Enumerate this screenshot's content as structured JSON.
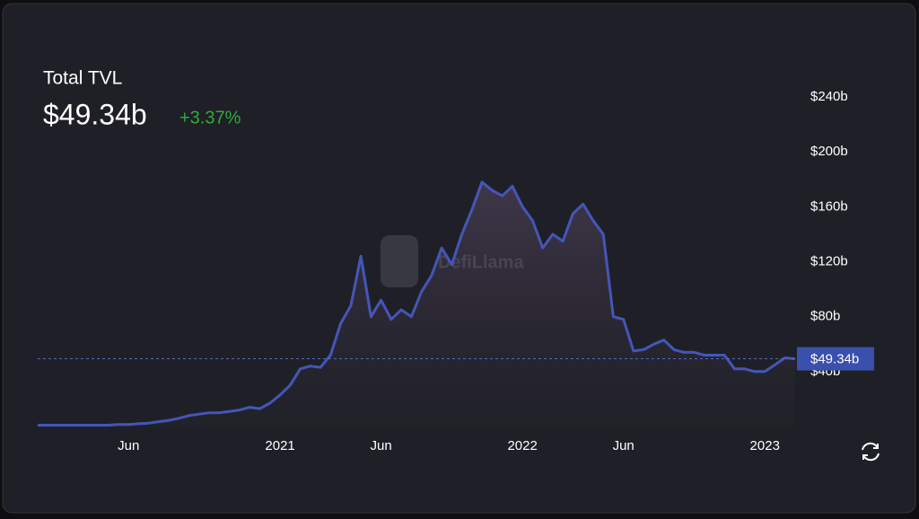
{
  "chart_data": {
    "type": "area",
    "title": "Total TVL",
    "change": "+3.37%",
    "watermark": "DefiLlama",
    "current": {
      "value": 49.34,
      "label": "$49.34b"
    },
    "color": "#4456b8",
    "categories": [
      null,
      null,
      null,
      null,
      null,
      null,
      null,
      null,
      null,
      "Jun",
      null,
      null,
      null,
      null,
      null,
      null,
      null,
      null,
      null,
      null,
      null,
      null,
      null,
      null,
      "2021",
      null,
      null,
      null,
      null,
      null,
      null,
      null,
      null,
      null,
      "Jun",
      null,
      null,
      null,
      null,
      null,
      null,
      null,
      null,
      null,
      null,
      null,
      null,
      null,
      "2022",
      null,
      null,
      null,
      null,
      null,
      null,
      null,
      null,
      null,
      "Jun",
      null,
      null,
      null,
      null,
      null,
      null,
      null,
      null,
      null,
      null,
      null,
      null,
      null,
      "2023",
      null,
      null,
      null
    ],
    "values": [
      1,
      1,
      1,
      1,
      1,
      1,
      1,
      1,
      1.5,
      1.5,
      2,
      2.5,
      3.5,
      4.5,
      6,
      8,
      9,
      10,
      10,
      11,
      12,
      14,
      13,
      17,
      23,
      30,
      42,
      44,
      43,
      52,
      75,
      88,
      124,
      80,
      92,
      78,
      85,
      80,
      98,
      110,
      130,
      118,
      140,
      158,
      178,
      172,
      168,
      175,
      160,
      150,
      130,
      140,
      135,
      155,
      162,
      150,
      140,
      80,
      78,
      55,
      56,
      60,
      63,
      56,
      54,
      54,
      52,
      52,
      52,
      42,
      42,
      40,
      40,
      45,
      50,
      49.34
    ],
    "ylim": [
      0,
      250
    ],
    "yticks": [
      {
        "value": 40,
        "label": "$40b"
      },
      {
        "value": 80,
        "label": "$80b"
      },
      {
        "value": 120,
        "label": "$120b"
      },
      {
        "value": 160,
        "label": "$160b"
      },
      {
        "value": 200,
        "label": "$200b"
      },
      {
        "value": 240,
        "label": "$240b"
      }
    ]
  }
}
